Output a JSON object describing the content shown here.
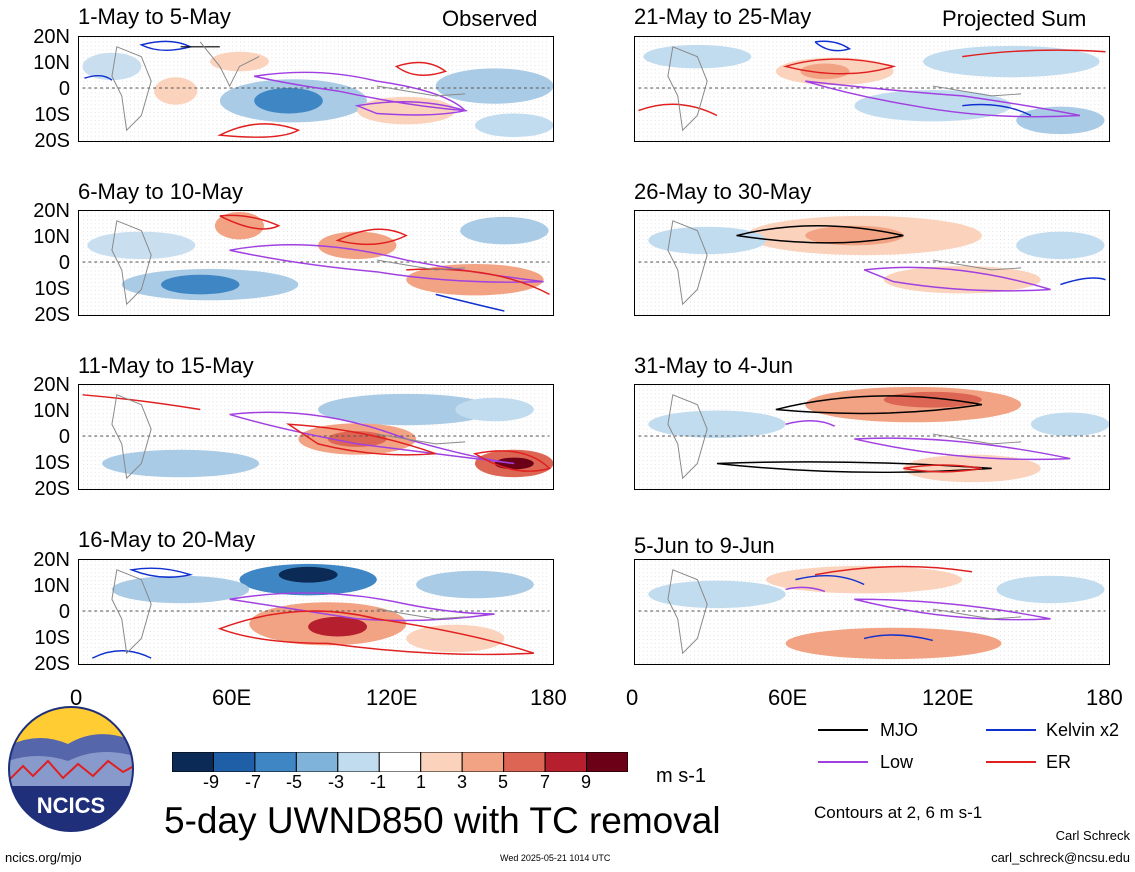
{
  "left_column_label": "Observed",
  "right_column_label": "Projected Sum",
  "panels_left": [
    {
      "title": "1-May to 5-May"
    },
    {
      "title": "6-May to 10-May"
    },
    {
      "title": "11-May to 15-May"
    },
    {
      "title": "16-May to 20-May"
    }
  ],
  "panels_right": [
    {
      "title": "21-May to 25-May"
    },
    {
      "title": "26-May to 30-May"
    },
    {
      "title": "31-May to 4-Jun"
    },
    {
      "title": "5-Jun to 9-Jun"
    }
  ],
  "lat_labels": [
    "20N",
    "10N",
    "0",
    "10S",
    "20S"
  ],
  "lon_labels": [
    "0",
    "60E",
    "120E",
    "180"
  ],
  "colorbar": {
    "ticks": [
      "-9",
      "-7",
      "-5",
      "-3",
      "-1",
      "1",
      "3",
      "5",
      "7",
      "9"
    ],
    "colors": [
      "#0b2a55",
      "#1f5fa8",
      "#3f86c4",
      "#7fb3da",
      "#c2dcef",
      "#ffffff",
      "#fbd3bd",
      "#f2a383",
      "#dd6553",
      "#b51f2e",
      "#6b0016"
    ],
    "units": "m s-1"
  },
  "legend": {
    "mjo": {
      "label": "MJO",
      "color": "#000000"
    },
    "kelvin": {
      "label": "Kelvin x2",
      "color": "#1030d0"
    },
    "low": {
      "label": "Low",
      "color": "#a040e0"
    },
    "er": {
      "label": "ER",
      "color": "#e02020"
    }
  },
  "contours_note": "Contours at 2, 6 m s-1",
  "main_title": "5-day UWND850 with TC removal",
  "logo_text": "NCICS",
  "website": "ncics.org/mjo",
  "timestamp": "Wed 2025-05-21 1014 UTC",
  "author": "Carl Schreck",
  "email": "carl_schreck@ncsu.edu"
}
